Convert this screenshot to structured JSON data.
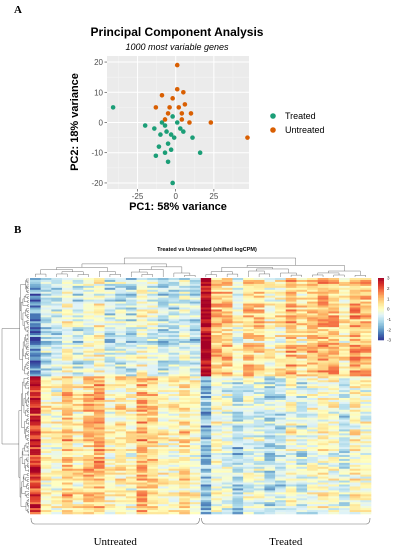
{
  "panels": {
    "a_label": "A",
    "b_label": "B"
  },
  "chart_data": [
    {
      "type": "scatter",
      "title": "Principal Component Analysis",
      "subtitle": "1000 most variable genes",
      "xlabel": "PC1: 58% variance",
      "ylabel": "PC2: 18% variance",
      "xlim": [
        -45,
        48
      ],
      "ylim": [
        -22,
        22
      ],
      "xticks": [
        -25,
        0,
        25
      ],
      "yticks": [
        -20,
        -10,
        0,
        10,
        20
      ],
      "grid": true,
      "legend_position": "right",
      "series": [
        {
          "name": "Treated",
          "color": "#1b9e77",
          "points": [
            [
              -41,
              5
            ],
            [
              -9,
              0
            ],
            [
              -20,
              -1
            ],
            [
              -6,
              -3
            ],
            [
              -2,
              2
            ],
            [
              1,
              0
            ],
            [
              -3,
              -4
            ],
            [
              -5,
              -7
            ],
            [
              -10,
              -4
            ],
            [
              -14,
              -2
            ],
            [
              3,
              -2
            ],
            [
              -1,
              -5
            ],
            [
              -11,
              -8
            ],
            [
              -7,
              -10
            ],
            [
              -3,
              -9
            ],
            [
              -13,
              -11
            ],
            [
              -5,
              -13
            ],
            [
              11,
              -5
            ],
            [
              16,
              -10
            ],
            [
              -2,
              -20
            ],
            [
              5,
              -3
            ],
            [
              -7,
              -1
            ]
          ]
        },
        {
          "name": "Untreated",
          "color": "#d95f02",
          "points": [
            [
              1,
              19
            ],
            [
              1,
              11
            ],
            [
              5,
              10
            ],
            [
              -9,
              9
            ],
            [
              -2,
              8
            ],
            [
              6,
              6
            ],
            [
              -13,
              5
            ],
            [
              -4,
              5
            ],
            [
              2,
              5
            ],
            [
              -5,
              3
            ],
            [
              4,
              3
            ],
            [
              10,
              3
            ],
            [
              -7,
              1
            ],
            [
              4,
              1
            ],
            [
              9,
              0
            ],
            [
              23,
              0
            ],
            [
              47,
              -5
            ]
          ]
        }
      ]
    },
    {
      "type": "heatmap",
      "title": "Treated vs Untreated (shifted logCPM)",
      "column_groups": [
        "Untreated",
        "Treated"
      ],
      "columns_per_group": 16,
      "row_count": 120,
      "colorbar_ticks": [
        3,
        2,
        1,
        0,
        -1,
        -2,
        -3
      ],
      "colorscale": [
        "#313695",
        "#4575b4",
        "#74add1",
        "#abd9e9",
        "#e0f3f8",
        "#ffffbf",
        "#fee090",
        "#fdae61",
        "#f46d43",
        "#d73027",
        "#a50026"
      ]
    }
  ]
}
